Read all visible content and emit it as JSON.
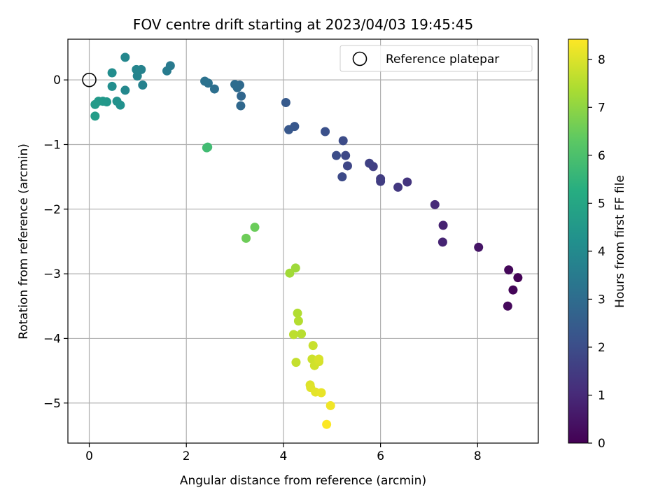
{
  "chart_data": {
    "type": "scatter",
    "title": "FOV centre drift starting at 2023/04/03 19:45:45",
    "xlabel": "Angular distance from reference (arcmin)",
    "ylabel": "Rotation from reference (arcmin)",
    "xlim": [
      -0.44,
      9.25
    ],
    "ylim": [
      -5.62,
      0.63
    ],
    "xticks": [
      0,
      2,
      4,
      6,
      8
    ],
    "yticks": [
      0,
      -1,
      -2,
      -3,
      -4,
      -5
    ],
    "xtick_labels": [
      "0",
      "2",
      "4",
      "6",
      "8"
    ],
    "ytick_labels": [
      "0",
      "−1",
      "−2",
      "−3",
      "−4",
      "−5"
    ],
    "grid": true,
    "colormap": "viridis",
    "colorbar": {
      "label": "Hours from first FF file",
      "range": [
        0,
        8.42
      ],
      "ticks": [
        0,
        1,
        2,
        3,
        4,
        5,
        6,
        7,
        8
      ],
      "tick_labels": [
        "0",
        "1",
        "2",
        "3",
        "4",
        "5",
        "6",
        "7",
        "8"
      ]
    },
    "legend": {
      "position": "top-right",
      "entries": [
        "Reference platepar"
      ]
    },
    "reference": {
      "x": 0,
      "y": 0
    },
    "points": [
      {
        "x": 8.83,
        "y": -3.06,
        "c": 0.05
      },
      {
        "x": 8.73,
        "y": -3.25,
        "c": 0.1
      },
      {
        "x": 8.64,
        "y": -2.94,
        "c": 0.15
      },
      {
        "x": 8.62,
        "y": -3.5,
        "c": 0.2
      },
      {
        "x": 8.02,
        "y": -2.59,
        "c": 0.5
      },
      {
        "x": 7.29,
        "y": -2.25,
        "c": 0.8
      },
      {
        "x": 7.28,
        "y": -2.51,
        "c": 0.85
      },
      {
        "x": 7.12,
        "y": -1.93,
        "c": 1.0
      },
      {
        "x": 6.55,
        "y": -1.58,
        "c": 1.3
      },
      {
        "x": 6.36,
        "y": -1.66,
        "c": 1.4
      },
      {
        "x": 6.0,
        "y": -1.53,
        "c": 1.5
      },
      {
        "x": 6.0,
        "y": -1.57,
        "c": 1.55
      },
      {
        "x": 5.85,
        "y": -1.34,
        "c": 1.6
      },
      {
        "x": 5.77,
        "y": -1.29,
        "c": 1.65
      },
      {
        "x": 5.32,
        "y": -1.33,
        "c": 1.8
      },
      {
        "x": 5.28,
        "y": -1.17,
        "c": 1.85
      },
      {
        "x": 5.21,
        "y": -1.5,
        "c": 1.9
      },
      {
        "x": 5.23,
        "y": -0.94,
        "c": 1.95
      },
      {
        "x": 5.09,
        "y": -1.17,
        "c": 2.0
      },
      {
        "x": 4.86,
        "y": -0.8,
        "c": 2.1
      },
      {
        "x": 4.23,
        "y": -0.72,
        "c": 2.3
      },
      {
        "x": 4.11,
        "y": -0.77,
        "c": 2.35
      },
      {
        "x": 4.05,
        "y": -0.35,
        "c": 2.4
      },
      {
        "x": 3.13,
        "y": -0.25,
        "c": 2.8
      },
      {
        "x": 3.12,
        "y": -0.4,
        "c": 2.85
      },
      {
        "x": 3.1,
        "y": -0.08,
        "c": 2.9
      },
      {
        "x": 3.05,
        "y": -0.12,
        "c": 2.95
      },
      {
        "x": 3.0,
        "y": -0.07,
        "c": 3.0
      },
      {
        "x": 2.58,
        "y": -0.14,
        "c": 3.1
      },
      {
        "x": 2.45,
        "y": -0.05,
        "c": 3.15
      },
      {
        "x": 2.38,
        "y": -0.02,
        "c": 3.2
      },
      {
        "x": 1.67,
        "y": 0.22,
        "c": 3.45
      },
      {
        "x": 1.6,
        "y": 0.14,
        "c": 3.5
      },
      {
        "x": 1.1,
        "y": -0.08,
        "c": 3.7
      },
      {
        "x": 1.07,
        "y": 0.16,
        "c": 3.75
      },
      {
        "x": 0.99,
        "y": 0.06,
        "c": 3.8
      },
      {
        "x": 0.97,
        "y": 0.16,
        "c": 3.85
      },
      {
        "x": 0.74,
        "y": 0.35,
        "c": 3.9
      },
      {
        "x": 0.74,
        "y": -0.16,
        "c": 3.95
      },
      {
        "x": 0.47,
        "y": 0.11,
        "c": 4.1
      },
      {
        "x": 0.47,
        "y": -0.1,
        "c": 4.15
      },
      {
        "x": 0.64,
        "y": -0.39,
        "c": 4.25
      },
      {
        "x": 0.57,
        "y": -0.33,
        "c": 4.3
      },
      {
        "x": 0.36,
        "y": -0.34,
        "c": 4.45
      },
      {
        "x": 0.28,
        "y": -0.33,
        "c": 4.5
      },
      {
        "x": 0.19,
        "y": -0.33,
        "c": 4.55
      },
      {
        "x": 0.12,
        "y": -0.38,
        "c": 4.6
      },
      {
        "x": 0.12,
        "y": -0.56,
        "c": 4.65
      },
      {
        "x": 2.44,
        "y": -1.04,
        "c": 5.75
      },
      {
        "x": 2.42,
        "y": -1.05,
        "c": 5.8
      },
      {
        "x": 3.41,
        "y": -2.28,
        "c": 6.5
      },
      {
        "x": 3.23,
        "y": -2.45,
        "c": 6.55
      },
      {
        "x": 4.25,
        "y": -2.91,
        "c": 7.2
      },
      {
        "x": 4.13,
        "y": -2.99,
        "c": 7.25
      },
      {
        "x": 4.29,
        "y": -3.61,
        "c": 7.45
      },
      {
        "x": 4.31,
        "y": -3.73,
        "c": 7.5
      },
      {
        "x": 4.37,
        "y": -3.93,
        "c": 7.55
      },
      {
        "x": 4.21,
        "y": -3.94,
        "c": 7.6
      },
      {
        "x": 4.26,
        "y": -4.37,
        "c": 7.7
      },
      {
        "x": 4.61,
        "y": -4.11,
        "c": 7.75
      },
      {
        "x": 4.59,
        "y": -4.32,
        "c": 7.8
      },
      {
        "x": 4.64,
        "y": -4.42,
        "c": 7.85
      },
      {
        "x": 4.73,
        "y": -4.36,
        "c": 7.9
      },
      {
        "x": 4.73,
        "y": -4.32,
        "c": 7.95
      },
      {
        "x": 4.55,
        "y": -4.72,
        "c": 8.0
      },
      {
        "x": 4.56,
        "y": -4.76,
        "c": 8.05
      },
      {
        "x": 4.66,
        "y": -4.83,
        "c": 8.1
      },
      {
        "x": 4.78,
        "y": -4.84,
        "c": 8.15
      },
      {
        "x": 4.97,
        "y": -5.04,
        "c": 8.25
      },
      {
        "x": 4.89,
        "y": -5.33,
        "c": 8.4
      }
    ]
  }
}
